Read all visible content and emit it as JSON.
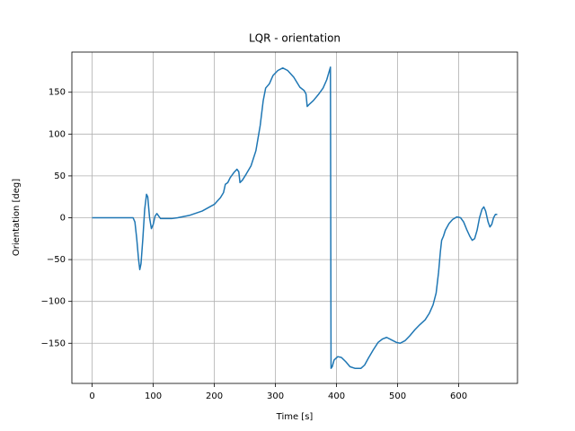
{
  "chart_data": {
    "type": "line",
    "title": "LQR - orientation",
    "x_label": "Time [s]",
    "y_label": "Orientation [deg]",
    "x": [
      0,
      30,
      60,
      67,
      70,
      73,
      76,
      78,
      80,
      83,
      86,
      89,
      91,
      94,
      97,
      100,
      103,
      106,
      109,
      112,
      120,
      130,
      140,
      160,
      180,
      200,
      210,
      215,
      218,
      222,
      226,
      232,
      237,
      240,
      242,
      246,
      252,
      260,
      268,
      275,
      280,
      284,
      290,
      296,
      304,
      312,
      320,
      330,
      340,
      347,
      350,
      352,
      356,
      362,
      370,
      378,
      384,
      390,
      391,
      393,
      396,
      402,
      408,
      415,
      422,
      430,
      440,
      446,
      452,
      460,
      468,
      475,
      482,
      490,
      498,
      504,
      512,
      520,
      528,
      536,
      545,
      552,
      558,
      563,
      567,
      570,
      572,
      575,
      578,
      584,
      590,
      597,
      603,
      608,
      613,
      618,
      622,
      626,
      630,
      634,
      638,
      641,
      644,
      648,
      651,
      654,
      657,
      660,
      663
    ],
    "series": [
      {
        "name": "orientation",
        "color": "#1f77b4",
        "values": [
          0,
          0,
          0,
          0,
          -5,
          -25,
          -50,
          -62,
          -55,
          -25,
          10,
          28,
          25,
          0,
          -13,
          -8,
          2,
          5,
          2,
          -1,
          -1,
          -1,
          0,
          3,
          8,
          16,
          24,
          30,
          40,
          42,
          48,
          54,
          58,
          55,
          42,
          45,
          52,
          62,
          80,
          110,
          140,
          155,
          160,
          170,
          176,
          179,
          176,
          168,
          156,
          152,
          148,
          133,
          136,
          140,
          147,
          155,
          165,
          180,
          -180,
          -178,
          -170,
          -166,
          -167,
          -172,
          -178,
          -180,
          -180,
          -176,
          -168,
          -158,
          -149,
          -145,
          -143,
          -146,
          -149,
          -150,
          -147,
          -141,
          -134,
          -128,
          -122,
          -114,
          -104,
          -90,
          -65,
          -40,
          -27,
          -22,
          -15,
          -7,
          -2,
          1,
          0,
          -5,
          -14,
          -22,
          -27,
          -25,
          -15,
          0,
          10,
          13,
          8,
          -5,
          -11,
          -8,
          0,
          4,
          4
        ]
      }
    ],
    "xlim": [
      -33.15,
      696.15
    ],
    "ylim": [
      -198,
      198
    ],
    "xticks": [
      0,
      100,
      200,
      300,
      400,
      500,
      600
    ],
    "yticks": [
      {
        "value": -150,
        "label": "−150"
      },
      {
        "value": -100,
        "label": "−100"
      },
      {
        "value": -50,
        "label": "−50"
      },
      0,
      50,
      100,
      150
    ],
    "grid": true
  }
}
